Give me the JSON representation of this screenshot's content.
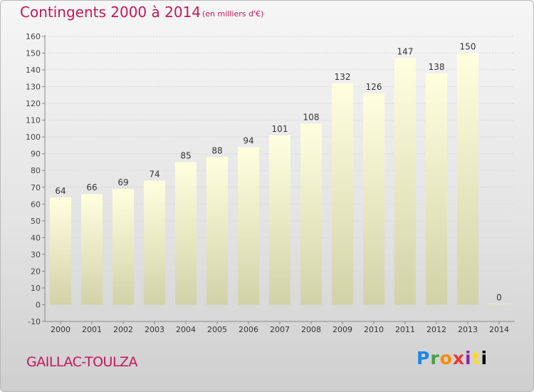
{
  "header": {
    "title": "Contingents 2000 à 2014",
    "subtitle": "(en milliers d'€)"
  },
  "footer": {
    "place": "GAILLAC-TOULZA",
    "brand": "Proxiti"
  },
  "colors": {
    "title": "#c2185b",
    "bar_top": "#ffffe0",
    "bar_bottom": "#d2d2a8",
    "grid": "#d8d8d8"
  },
  "chart_data": {
    "type": "bar",
    "categories": [
      "2000",
      "2001",
      "2002",
      "2003",
      "2004",
      "2005",
      "2006",
      "2007",
      "2008",
      "2009",
      "2010",
      "2011",
      "2012",
      "2013",
      "2014"
    ],
    "values": [
      64,
      66,
      69,
      74,
      85,
      88,
      94,
      101,
      108,
      132,
      126,
      147,
      138,
      150,
      0
    ],
    "ylim": [
      -10,
      160
    ],
    "yticks": [
      -10,
      0,
      10,
      20,
      30,
      40,
      50,
      60,
      70,
      80,
      90,
      100,
      110,
      120,
      130,
      140,
      150,
      160
    ],
    "grid": true,
    "data_labels": true
  }
}
